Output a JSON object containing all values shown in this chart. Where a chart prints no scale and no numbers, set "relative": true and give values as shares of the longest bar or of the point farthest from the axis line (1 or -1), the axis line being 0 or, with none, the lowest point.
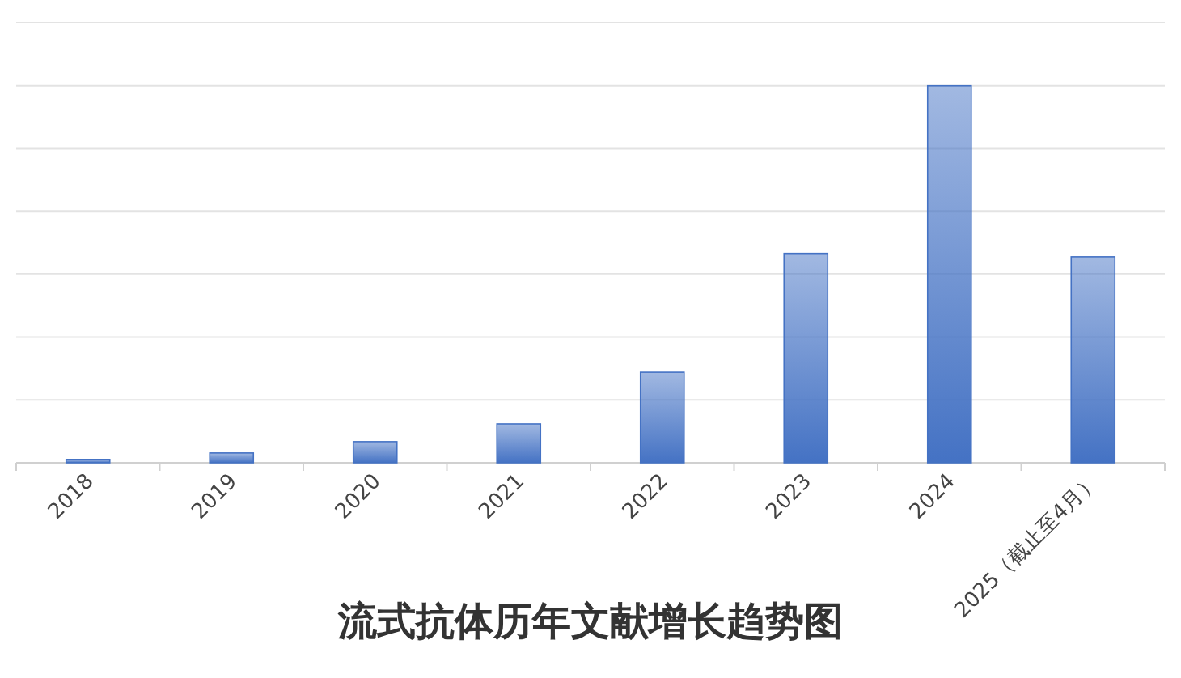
{
  "chart_data": {
    "type": "bar",
    "title": "流式抗体历年文献增长趋势图",
    "relative": true,
    "grid": "y",
    "color": "#4472c4",
    "categories": [
      "2018",
      "2019",
      "2020",
      "2021",
      "2022",
      "2023",
      "2024",
      "2025（截止至4月）"
    ],
    "values": [
      0.009,
      0.026,
      0.056,
      0.103,
      0.24,
      0.554,
      1,
      0.545
    ]
  }
}
